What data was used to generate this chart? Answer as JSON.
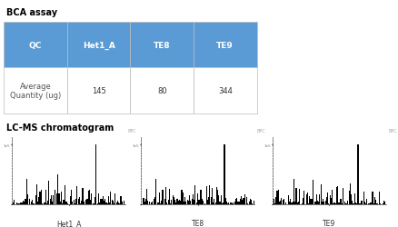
{
  "title_bca": "BCA assay",
  "title_lcms": "LC-MS chromatogram",
  "table_header": [
    "QC",
    "Het1_A",
    "TE8",
    "TE9"
  ],
  "table_row_label": "Average\nQuantity (ug)",
  "table_values": [
    145,
    80,
    344
  ],
  "header_bg": "#5b9bd5",
  "header_text_color": "#ffffff",
  "cell_bg": "#ffffff",
  "border_color": "#bbbbbb",
  "chromatogram_labels": [
    "Het1_A",
    "TE8",
    "TE9"
  ],
  "title_fontsize": 7,
  "label_fontsize": 5.5,
  "table_fontsize": 6,
  "table_header_fontsize": 6.5
}
